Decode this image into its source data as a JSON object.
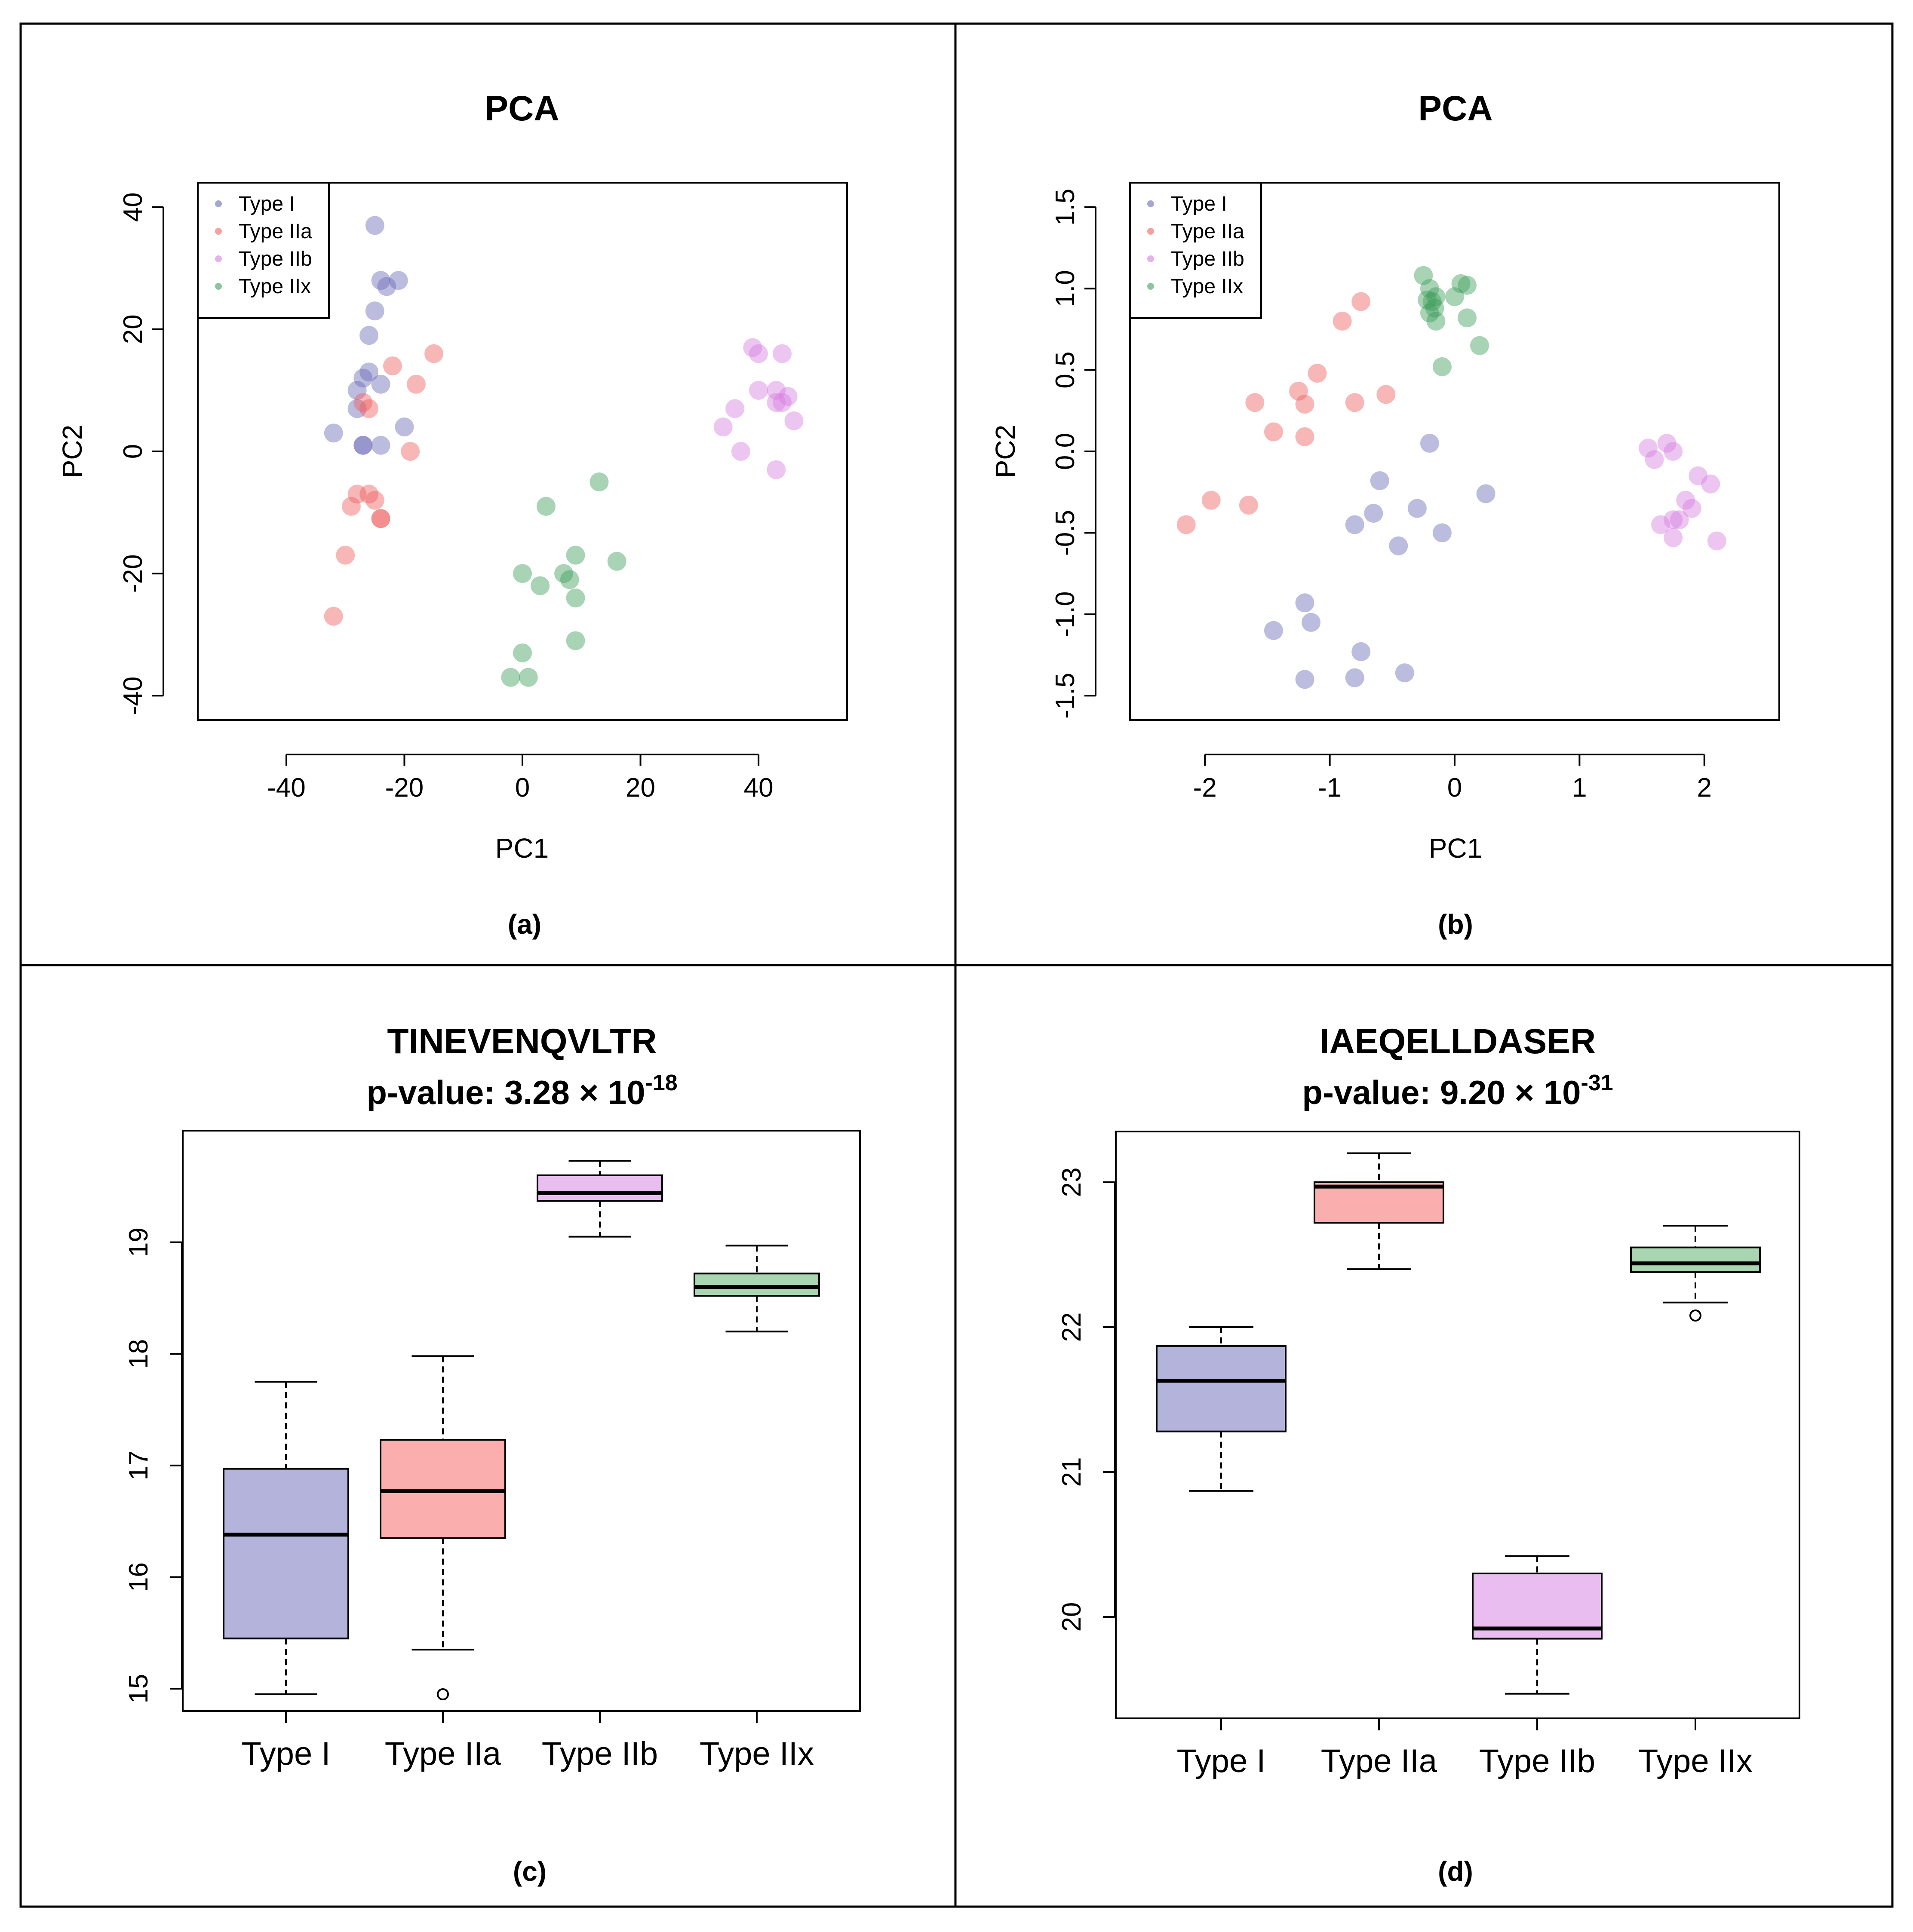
{
  "colors": {
    "Type I": "#6b6bb8",
    "Type IIa": "#f06060",
    "Type IIb": "#d67ee0",
    "Type IIx": "#3f9e5a",
    "box_fill": {
      "Type I": "#b3b3dc",
      "Type IIa": "#fbaeae",
      "Type IIb": "#e9bdf0",
      "Type IIx": "#a9d5b0"
    }
  },
  "chart_data": [
    {
      "id": "a",
      "type": "scatter",
      "title": "PCA",
      "xlabel": "PC1",
      "ylabel": "PC2",
      "panel_label": "(a)",
      "xlim": [
        -55,
        55
      ],
      "ylim": [
        -44,
        44
      ],
      "xticks": [
        -40,
        -20,
        0,
        20,
        40
      ],
      "xtick_labels": [
        "-40",
        "-20",
        "0",
        "20",
        "40"
      ],
      "yticks": [
        -40,
        -20,
        0,
        20,
        40
      ],
      "ytick_labels": [
        "-40",
        "-20",
        "0",
        "20",
        "40"
      ],
      "legend": [
        "Type I",
        "Type IIa",
        "Type IIb",
        "Type IIx"
      ],
      "legend_position": "top-left",
      "series": [
        {
          "name": "Type I",
          "x": [
            -25,
            -24,
            -23,
            -21,
            -25,
            -26,
            -26,
            -27,
            -28,
            -28,
            -27,
            -24,
            -20,
            -32,
            -27,
            -24
          ],
          "y": [
            37,
            28,
            27,
            28,
            23,
            19,
            13,
            12,
            10,
            7,
            1,
            11,
            4,
            3,
            1,
            1
          ]
        },
        {
          "name": "Type IIa",
          "x": [
            -15,
            -22,
            -18,
            -27,
            -26,
            -19,
            -28,
            -29,
            -26,
            -25,
            -24,
            -24,
            -30,
            -32
          ],
          "y": [
            16,
            14,
            11,
            8,
            7,
            0,
            -7,
            -9,
            -7,
            -8,
            -11,
            -11,
            -17,
            -27
          ]
        },
        {
          "name": "Type IIb",
          "x": [
            39,
            40,
            44,
            36,
            40,
            43,
            43,
            45,
            46,
            34,
            37,
            43,
            44
          ],
          "y": [
            17,
            16,
            16,
            7,
            10,
            10,
            8,
            9,
            5,
            4,
            0,
            -3,
            8
          ]
        },
        {
          "name": "Type IIx",
          "x": [
            13,
            4,
            9,
            16,
            0,
            7,
            8,
            3,
            9,
            9,
            0,
            -2,
            1
          ],
          "y": [
            -5,
            -9,
            -17,
            -18,
            -20,
            -20,
            -21,
            -22,
            -24,
            -31,
            -33,
            -37,
            -37
          ]
        }
      ]
    },
    {
      "id": "b",
      "type": "scatter",
      "title": "PCA",
      "xlabel": "PC1",
      "ylabel": "PC2",
      "panel_label": "(b)",
      "xlim": [
        -2.6,
        2.6
      ],
      "ylim": [
        -1.65,
        1.65
      ],
      "xticks": [
        -2,
        -1,
        0,
        1,
        2
      ],
      "xtick_labels": [
        "-2",
        "-1",
        "0",
        "1",
        "2"
      ],
      "yticks": [
        -1.5,
        -1.0,
        -0.5,
        0.0,
        0.5,
        1.0,
        1.5
      ],
      "ytick_labels": [
        "-1.5",
        "-1.0",
        "-0.5",
        "0.0",
        "0.5",
        "1.0",
        "1.5"
      ],
      "legend": [
        "Type I",
        "Type IIa",
        "Type IIb",
        "Type IIx"
      ],
      "legend_position": "top-left",
      "series": [
        {
          "name": "Type I",
          "x": [
            -0.2,
            -0.6,
            -0.3,
            -0.65,
            -0.8,
            -0.1,
            -0.45,
            0.25,
            -1.2,
            -1.45,
            -1.15,
            -0.75,
            -1.2,
            -0.8,
            -0.4
          ],
          "y": [
            0.05,
            -0.18,
            -0.35,
            -0.38,
            -0.45,
            -0.5,
            -0.58,
            -0.26,
            -0.93,
            -1.1,
            -1.05,
            -1.23,
            -1.4,
            -1.39,
            -1.36
          ]
        },
        {
          "name": "Type IIa",
          "x": [
            -0.75,
            -0.9,
            -1.1,
            -1.25,
            -1.6,
            -0.55,
            -0.8,
            -1.2,
            -1.45,
            -1.2,
            -1.95,
            -1.65,
            -2.15
          ],
          "y": [
            0.92,
            0.8,
            0.48,
            0.37,
            0.3,
            0.35,
            0.3,
            0.29,
            0.12,
            0.09,
            -0.3,
            -0.33,
            -0.45
          ]
        },
        {
          "name": "Type IIb",
          "x": [
            1.55,
            1.6,
            1.7,
            1.75,
            1.95,
            2.05,
            1.85,
            1.9,
            1.75,
            1.65,
            1.8,
            1.75,
            2.1
          ],
          "y": [
            0.02,
            -0.05,
            0.05,
            0.0,
            -0.15,
            -0.2,
            -0.3,
            -0.35,
            -0.42,
            -0.45,
            -0.42,
            -0.53,
            -0.55
          ]
        },
        {
          "name": "Type IIx",
          "x": [
            -0.25,
            -0.2,
            -0.15,
            -0.18,
            -0.2,
            -0.15,
            0.1,
            0.05,
            0.0,
            -0.22,
            -0.16,
            0.1,
            -0.1,
            0.2
          ],
          "y": [
            1.08,
            1.0,
            0.95,
            0.92,
            0.85,
            0.8,
            1.02,
            1.03,
            0.95,
            0.93,
            0.88,
            0.82,
            0.52,
            0.65
          ]
        }
      ]
    },
    {
      "id": "c",
      "type": "box",
      "title": "TINEVENQVLTR",
      "subtitle_prefix": "p-value: 3.28 × 10",
      "subtitle_exp": "-18",
      "panel_label": "(c)",
      "categories": [
        "Type I",
        "Type IIa",
        "Type IIb",
        "Type IIx"
      ],
      "ylim": [
        14.8,
        20.0
      ],
      "yticks": [
        15,
        16,
        17,
        18,
        19
      ],
      "ytick_labels": [
        "15",
        "16",
        "17",
        "18",
        "19"
      ],
      "boxes": [
        {
          "min": 14.95,
          "q1": 15.45,
          "median": 16.38,
          "q3": 16.97,
          "max": 17.75,
          "outliers": []
        },
        {
          "min": 15.35,
          "q1": 16.35,
          "median": 16.77,
          "q3": 17.23,
          "max": 17.98,
          "outliers": [
            14.95
          ]
        },
        {
          "min": 19.05,
          "q1": 19.37,
          "median": 19.44,
          "q3": 19.6,
          "max": 19.73,
          "outliers": []
        },
        {
          "min": 18.2,
          "q1": 18.52,
          "median": 18.6,
          "q3": 18.72,
          "max": 18.97,
          "outliers": []
        }
      ]
    },
    {
      "id": "d",
      "type": "box",
      "title": "IAEQELLDASER",
      "subtitle_prefix": "p-value: 9.20 × 10",
      "subtitle_exp": "-31",
      "panel_label": "(d)",
      "categories": [
        "Type I",
        "Type IIa",
        "Type IIb",
        "Type IIx"
      ],
      "ylim": [
        19.3,
        23.35
      ],
      "yticks": [
        20,
        21,
        22,
        23
      ],
      "ytick_labels": [
        "20",
        "21",
        "22",
        "23"
      ],
      "boxes": [
        {
          "min": 20.87,
          "q1": 21.28,
          "median": 21.63,
          "q3": 21.87,
          "max": 22.0,
          "outliers": []
        },
        {
          "min": 22.4,
          "q1": 22.72,
          "median": 22.97,
          "q3": 23.0,
          "max": 23.2,
          "outliers": []
        },
        {
          "min": 19.47,
          "q1": 19.85,
          "median": 19.92,
          "q3": 20.3,
          "max": 20.42,
          "outliers": []
        },
        {
          "min": 22.17,
          "q1": 22.38,
          "median": 22.44,
          "q3": 22.55,
          "max": 22.7,
          "outliers": [
            22.08
          ]
        }
      ]
    }
  ]
}
